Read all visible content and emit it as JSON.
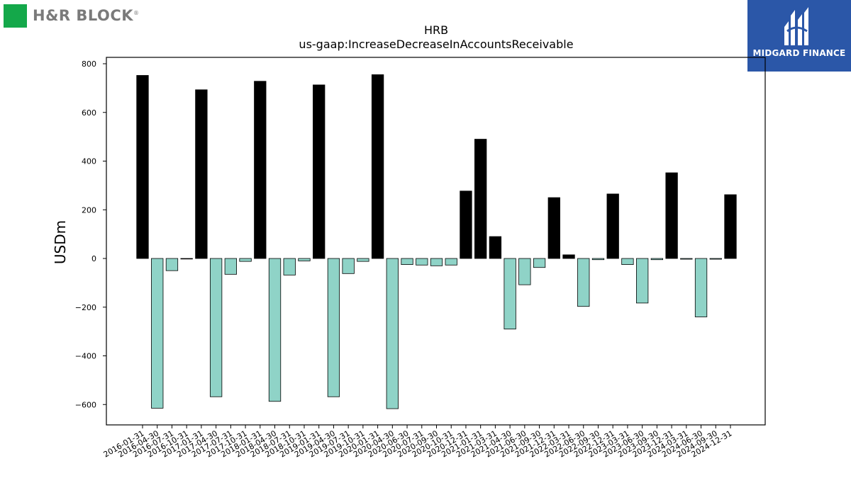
{
  "branding": {
    "left_logo_text": "H&R BLOCK",
    "left_logo_mark": "®",
    "left_logo_color": "#14a84a",
    "right_logo_text": "MIDGARD FINANCE",
    "right_logo_color": "#2b57a8"
  },
  "chart_data": {
    "type": "bar",
    "title": "HRB",
    "subtitle": "us-gaap:IncreaseDecreaseInAccountsReceivable",
    "xlabel": "",
    "ylabel": "USDm",
    "ylim": [
      -685,
      825
    ],
    "yticks": [
      -600,
      -400,
      -200,
      0,
      200,
      400,
      600,
      800
    ],
    "ytick_labels": [
      "−600",
      "−400",
      "−200",
      "0",
      "200",
      "400",
      "600",
      "800"
    ],
    "grid": false,
    "positive_color": "#000000",
    "negative_color": "#8fd3c7",
    "categories": [
      "2016-01-31",
      "2016-04-30",
      "2016-07-31",
      "2016-10-31",
      "2017-01-31",
      "2017-04-30",
      "2017-07-31",
      "2017-10-31",
      "2018-01-31",
      "2018-04-30",
      "2018-07-31",
      "2018-10-31",
      "2019-01-31",
      "2019-04-30",
      "2019-07-31",
      "2019-10-31",
      "2020-01-31",
      "2020-04-30",
      "2020-06-30",
      "2020-07-31",
      "2020-09-30",
      "2020-10-31",
      "2020-12-31",
      "2021-01-31",
      "2021-03-31",
      "2021-04-30",
      "2021-06-30",
      "2021-09-30",
      "2021-12-31",
      "2022-03-31",
      "2022-06-30",
      "2022-09-30",
      "2022-12-31",
      "2023-03-31",
      "2023-06-30",
      "2023-09-30",
      "2023-12-31",
      "2024-03-31",
      "2024-06-30",
      "2024-09-30",
      "2024-12-31"
    ],
    "values": [
      752,
      -615,
      -50,
      -2,
      693,
      -568,
      -65,
      -12,
      728,
      -587,
      -68,
      -10,
      713,
      -568,
      -62,
      -12,
      755,
      -617,
      -25,
      -27,
      -30,
      -27,
      277,
      490,
      90,
      -290,
      -108,
      -37,
      250,
      15,
      -197,
      -5,
      265,
      -25,
      -183,
      -5,
      352,
      -3,
      -240,
      -3,
      262
    ]
  }
}
